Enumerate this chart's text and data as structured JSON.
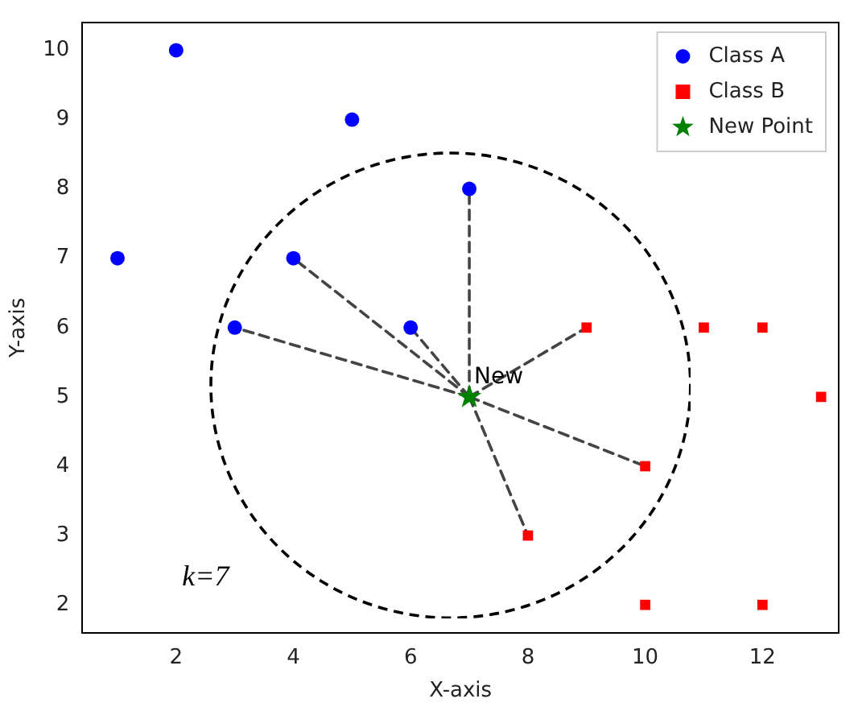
{
  "chart_data": {
    "type": "scatter",
    "xlabel": "X-axis",
    "ylabel": "Y-axis",
    "xlim": [
      0.4,
      13.3
    ],
    "ylim": [
      1.6,
      10.4
    ],
    "xticks": [
      2,
      4,
      6,
      8,
      10,
      12
    ],
    "yticks": [
      2,
      3,
      4,
      5,
      6,
      7,
      8,
      9,
      10
    ],
    "legend": "top right",
    "grid": false,
    "annotations": [
      {
        "text": "New",
        "x": 7,
        "y": 5
      },
      "k=7"
    ],
    "series": [
      {
        "type": "line",
        "color": "#444444",
        "line_style": "dashed",
        "marker": "none",
        "x": [
          7,
          7,
          null,
          7,
          4,
          null,
          7,
          3,
          null,
          7,
          6,
          null,
          7,
          9,
          null,
          7,
          10,
          null,
          7,
          8
        ],
        "values": [
          5,
          8,
          null,
          5,
          7,
          null,
          5,
          6,
          null,
          5,
          6,
          null,
          5,
          6,
          null,
          5,
          4,
          null,
          5,
          3
        ]
      },
      {
        "name": "Class A",
        "color": "#0000ff",
        "marker": "circle",
        "x": [
          1,
          2,
          5,
          7,
          4,
          3,
          6
        ],
        "values": [
          7,
          10,
          9,
          8,
          7,
          6,
          6
        ]
      },
      {
        "name": "Class B",
        "color": "#ff0000",
        "marker": "square",
        "x": [
          9,
          11,
          12,
          13,
          10,
          8,
          10,
          12
        ],
        "values": [
          6,
          6,
          6,
          5,
          4,
          3,
          2,
          2
        ]
      },
      {
        "name": "New Point",
        "color": "#008000",
        "marker": "star",
        "x": [
          7
        ],
        "values": [
          5
        ]
      }
    ]
  }
}
